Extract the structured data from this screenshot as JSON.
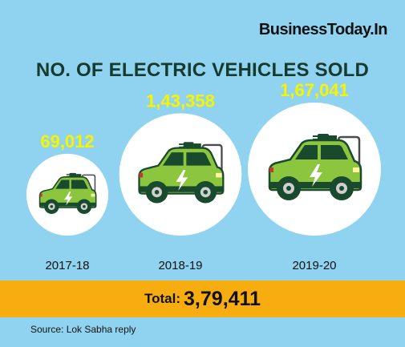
{
  "brand": "BusinessToday.In",
  "chart_data": {
    "type": "bubble",
    "title": "NO. OF ELECTRIC VEHICLES SOLD",
    "categories": [
      "2017-18",
      "2018-19",
      "2019-20"
    ],
    "values": [
      69012,
      143358,
      167041
    ],
    "value_labels": [
      "69,012",
      "1,43,358",
      "1,67,041"
    ],
    "total_label": "Total:",
    "total_value": "3,79,411",
    "source": "Source: Lok Sabha reply"
  },
  "colors": {
    "background": "#8fd3f0",
    "value_text": "#f8f400",
    "car_body": "#8cc63f",
    "total_bar": "#f7ad10"
  }
}
